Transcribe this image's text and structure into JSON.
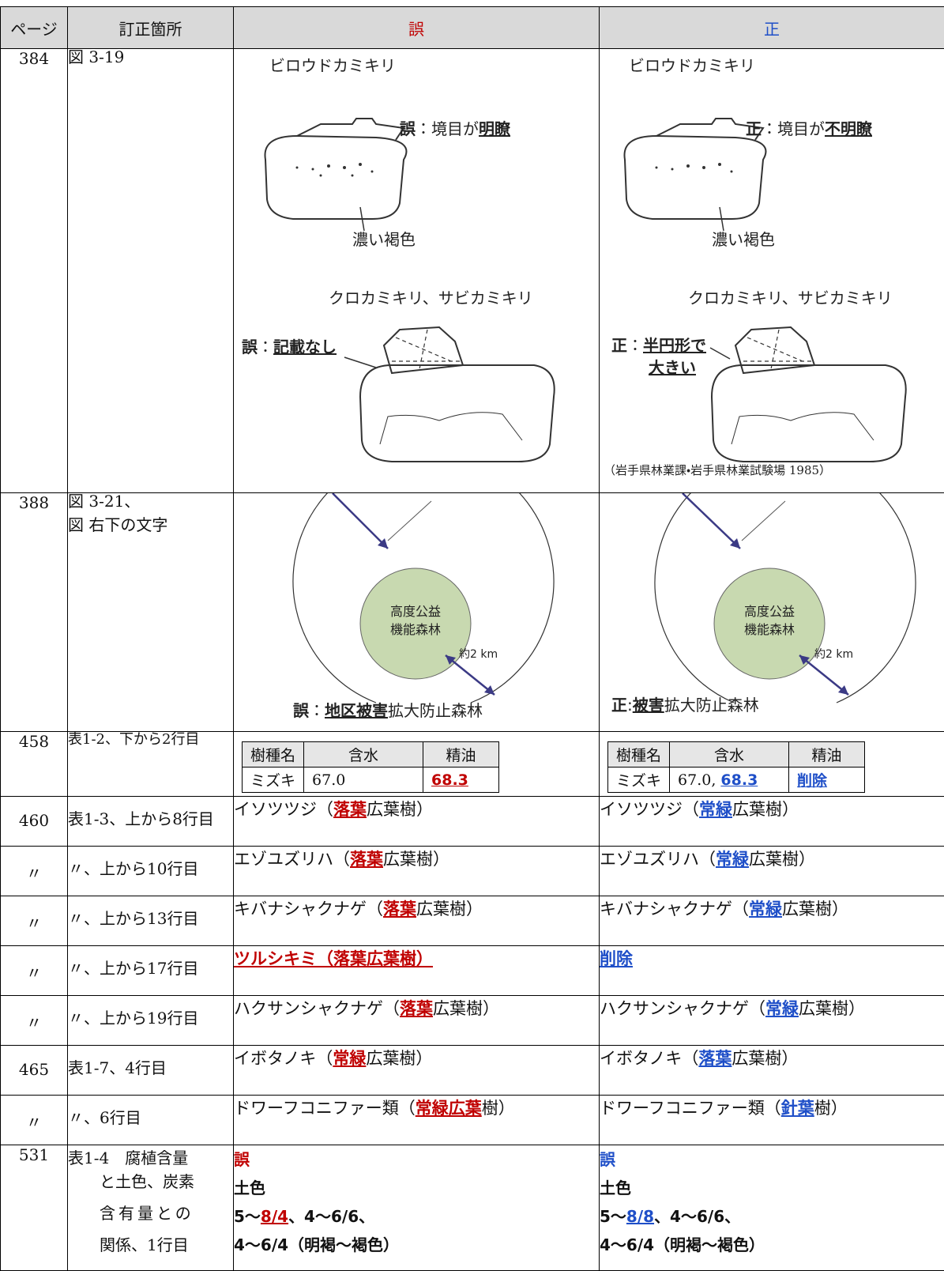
{
  "table": {
    "header": {
      "page": "ページ",
      "location": "訂正箇所",
      "wrong": "誤",
      "right": "正"
    },
    "rows": [
      {
        "page": "384",
        "location": [
          "図 3-19"
        ],
        "wrong": {
          "fig1_title": "ビロウドカミキリ",
          "fig1_note": [
            "誤",
            "：境目が",
            "明瞭"
          ],
          "fig1_caption": "濃い褐色",
          "fig2_title": "クロカミキリ、サビカミキリ",
          "fig2_note": [
            "誤",
            "：",
            "記載なし"
          ]
        },
        "right": {
          "fig1_title": "ビロウドカミキリ",
          "fig1_note": [
            "正",
            "：境目が",
            "不明瞭"
          ],
          "fig1_caption": "濃い褐色",
          "fig2_title": "クロカミキリ、サビカミキリ",
          "fig2_note": [
            "正",
            "：",
            "半円形で",
            "大きい"
          ],
          "source": "（岩手県林業課・岩手県林業試験場 1985）"
        }
      },
      {
        "page": "388",
        "location": [
          "図 3-21、",
          "図 右下の文字"
        ],
        "wrong": {
          "center": [
            "高度公益",
            "機能森林"
          ],
          "distance": "約2 km",
          "note": [
            "誤",
            "：",
            "地区被害",
            "拡大防止森林"
          ]
        },
        "right": {
          "center": [
            "高度公益",
            "機能森林"
          ],
          "distance": "約2 km",
          "note": [
            "正",
            ":",
            "被害",
            "拡大防止森林"
          ]
        }
      },
      {
        "page": "458",
        "location": [
          "表1-2、下から2行目"
        ],
        "wrong": {
          "head": [
            "樹種名",
            "含水",
            "精油"
          ],
          "row": [
            "ミズキ",
            "67.0",
            "68.3"
          ]
        },
        "right": {
          "head": [
            "樹種名",
            "含水",
            "精油"
          ],
          "row": [
            "ミズキ",
            "67.0, ",
            "68.3",
            "削除"
          ]
        }
      },
      {
        "page": "460",
        "location": [
          "表1-3、上から8行目"
        ],
        "wrong": [
          "イソツツジ（",
          "落葉",
          "広葉樹）"
        ],
        "right": [
          "イソツツジ（",
          "常緑",
          "広葉樹）"
        ]
      },
      {
        "page": "〃",
        "location": [
          "〃、上から10行目"
        ],
        "wrong": [
          "エゾユズリハ（",
          "落葉",
          "広葉樹）"
        ],
        "right": [
          "エゾユズリハ（",
          "常緑",
          "広葉樹）"
        ]
      },
      {
        "page": "〃",
        "location": [
          "〃、上から13行目"
        ],
        "wrong": [
          "キバナシャクナゲ（",
          "落葉",
          "広葉樹）"
        ],
        "right": [
          "キバナシャクナゲ（",
          "常緑",
          "広葉樹）"
        ]
      },
      {
        "page": "〃",
        "location": [
          "〃、上から17行目"
        ],
        "wrong": [
          "ツルシキミ（落葉広葉樹）"
        ],
        "right": [
          "削除"
        ]
      },
      {
        "page": "〃",
        "location": [
          "〃、上から19行目"
        ],
        "wrong": [
          "ハクサンシャクナゲ（",
          "落葉",
          "広葉樹）"
        ],
        "right": [
          "ハクサンシャクナゲ（",
          "常緑",
          "広葉樹）"
        ]
      },
      {
        "page": "465",
        "location": [
          "表1-7、4行目"
        ],
        "wrong": [
          "イボタノキ（",
          "常緑",
          "広葉樹）"
        ],
        "right": [
          "イボタノキ（",
          "落葉",
          "広葉樹）"
        ]
      },
      {
        "page": "〃",
        "location": [
          "〃、6行目"
        ],
        "wrong": [
          "ドワーフコニファー類（",
          "常緑広葉",
          "樹）"
        ],
        "right": [
          "ドワーフコニファー類（",
          "針葉",
          "樹）"
        ]
      },
      {
        "page": "531",
        "location": [
          "表1-4　腐植含量",
          "と土色、炭素",
          "含有量との",
          "関係、1行目"
        ],
        "wrong": {
          "label": "誤",
          "line1": "土色",
          "line2": [
            "5〜",
            "8/4",
            "、4〜6/6、"
          ],
          "line3": "4〜6/4（明褐〜褐色）"
        },
        "right": {
          "label": "誤",
          "line1": "土色",
          "line2": [
            "5〜",
            "8/8",
            "、4〜6/6、"
          ],
          "line3": "4〜6/4（明褐〜褐色）"
        }
      }
    ]
  }
}
